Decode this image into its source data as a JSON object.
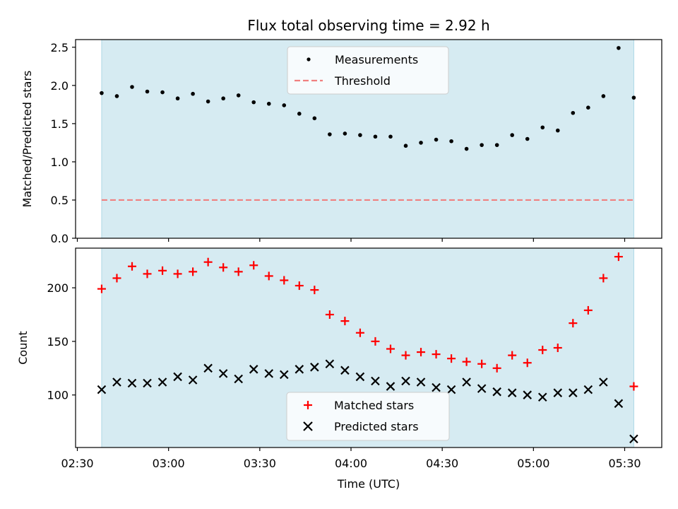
{
  "chart_data": [
    {
      "type": "scatter",
      "title": "Flux total observing time = 2.92 h",
      "ylabel": "Matched/Predicted stars",
      "ylim": [
        0,
        2.6
      ],
      "yticks": [
        0.0,
        0.5,
        1.0,
        1.5,
        2.0,
        2.5
      ],
      "ytick_labels": [
        "0.0",
        "0.5",
        "1.0",
        "1.5",
        "2.0",
        "2.5"
      ],
      "shaded_region": {
        "start": "02:38",
        "end": "05:33",
        "color": "#add8e6"
      },
      "legend": {
        "placement": "upper center"
      },
      "series": [
        {
          "name": "Measurements",
          "marker": "dot",
          "color": "#000000",
          "points": [
            [
              "02:38",
              1.9
            ],
            [
              "02:43",
              1.86
            ],
            [
              "02:48",
              1.98
            ],
            [
              "02:53",
              1.92
            ],
            [
              "02:58",
              1.91
            ],
            [
              "03:03",
              1.83
            ],
            [
              "03:08",
              1.89
            ],
            [
              "03:13",
              1.79
            ],
            [
              "03:18",
              1.83
            ],
            [
              "03:23",
              1.87
            ],
            [
              "03:28",
              1.78
            ],
            [
              "03:33",
              1.76
            ],
            [
              "03:38",
              1.74
            ],
            [
              "03:43",
              1.63
            ],
            [
              "03:48",
              1.57
            ],
            [
              "03:53",
              1.36
            ],
            [
              "03:58",
              1.37
            ],
            [
              "04:03",
              1.35
            ],
            [
              "04:08",
              1.33
            ],
            [
              "04:13",
              1.33
            ],
            [
              "04:18",
              1.21
            ],
            [
              "04:23",
              1.25
            ],
            [
              "04:28",
              1.29
            ],
            [
              "04:33",
              1.27
            ],
            [
              "04:38",
              1.17
            ],
            [
              "04:43",
              1.22
            ],
            [
              "04:48",
              1.22
            ],
            [
              "04:53",
              1.35
            ],
            [
              "04:58",
              1.3
            ],
            [
              "05:03",
              1.45
            ],
            [
              "05:08",
              1.41
            ],
            [
              "05:13",
              1.64
            ],
            [
              "05:18",
              1.71
            ],
            [
              "05:23",
              1.86
            ],
            [
              "05:28",
              2.49
            ],
            [
              "05:33",
              1.84
            ]
          ]
        },
        {
          "name": "Threshold",
          "marker": "dashed-line",
          "color": "#f08080",
          "value": 0.5,
          "x_range": [
            "02:38",
            "05:33"
          ]
        }
      ]
    },
    {
      "type": "scatter",
      "xlabel": "Time (UTC)",
      "ylabel": "Count",
      "ylim": [
        51,
        237
      ],
      "yticks": [
        100,
        150,
        200
      ],
      "ytick_labels": [
        "100",
        "150",
        "200"
      ],
      "xlim": [
        "02:30",
        "05:40"
      ],
      "xticks": [
        "02:30",
        "03:00",
        "03:30",
        "04:00",
        "04:30",
        "05:00",
        "05:30"
      ],
      "xtick_labels": [
        "02:30",
        "03:00",
        "03:30",
        "04:00",
        "04:30",
        "05:00",
        "05:30"
      ],
      "shaded_region": {
        "start": "02:38",
        "end": "05:33",
        "color": "#add8e6"
      },
      "legend": {
        "placement": "lower center"
      },
      "series": [
        {
          "name": "Matched stars",
          "marker": "plus",
          "color": "#ff0000",
          "points": [
            [
              "02:38",
              199
            ],
            [
              "02:43",
              209
            ],
            [
              "02:48",
              220
            ],
            [
              "02:53",
              213
            ],
            [
              "02:58",
              216
            ],
            [
              "03:03",
              213
            ],
            [
              "03:08",
              215
            ],
            [
              "03:13",
              224
            ],
            [
              "03:18",
              219
            ],
            [
              "03:23",
              215
            ],
            [
              "03:28",
              221
            ],
            [
              "03:33",
              211
            ],
            [
              "03:38",
              207
            ],
            [
              "03:43",
              202
            ],
            [
              "03:48",
              198
            ],
            [
              "03:53",
              175
            ],
            [
              "03:58",
              169
            ],
            [
              "04:03",
              158
            ],
            [
              "04:08",
              150
            ],
            [
              "04:13",
              143
            ],
            [
              "04:18",
              137
            ],
            [
              "04:23",
              140
            ],
            [
              "04:28",
              138
            ],
            [
              "04:33",
              134
            ],
            [
              "04:38",
              131
            ],
            [
              "04:43",
              129
            ],
            [
              "04:48",
              125
            ],
            [
              "04:53",
              137
            ],
            [
              "04:58",
              130
            ],
            [
              "05:03",
              142
            ],
            [
              "05:08",
              144
            ],
            [
              "05:13",
              167
            ],
            [
              "05:18",
              179
            ],
            [
              "05:23",
              209
            ],
            [
              "05:28",
              229
            ],
            [
              "05:33",
              108
            ]
          ]
        },
        {
          "name": "Predicted stars",
          "marker": "x",
          "color": "#000000",
          "points": [
            [
              "02:38",
              105
            ],
            [
              "02:43",
              112
            ],
            [
              "02:48",
              111
            ],
            [
              "02:53",
              111
            ],
            [
              "02:58",
              112
            ],
            [
              "03:03",
              117
            ],
            [
              "03:08",
              114
            ],
            [
              "03:13",
              125
            ],
            [
              "03:18",
              120
            ],
            [
              "03:23",
              115
            ],
            [
              "03:28",
              124
            ],
            [
              "03:33",
              120
            ],
            [
              "03:38",
              119
            ],
            [
              "03:43",
              124
            ],
            [
              "03:48",
              126
            ],
            [
              "03:53",
              129
            ],
            [
              "03:58",
              123
            ],
            [
              "04:03",
              117
            ],
            [
              "04:08",
              113
            ],
            [
              "04:13",
              108
            ],
            [
              "04:18",
              113
            ],
            [
              "04:23",
              112
            ],
            [
              "04:28",
              107
            ],
            [
              "04:33",
              105
            ],
            [
              "04:38",
              112
            ],
            [
              "04:43",
              106
            ],
            [
              "04:48",
              103
            ],
            [
              "04:53",
              102
            ],
            [
              "04:58",
              100
            ],
            [
              "05:03",
              98
            ],
            [
              "05:08",
              102
            ],
            [
              "05:13",
              102
            ],
            [
              "05:18",
              105
            ],
            [
              "05:23",
              112
            ],
            [
              "05:28",
              92
            ],
            [
              "05:33",
              59
            ]
          ]
        }
      ]
    }
  ]
}
